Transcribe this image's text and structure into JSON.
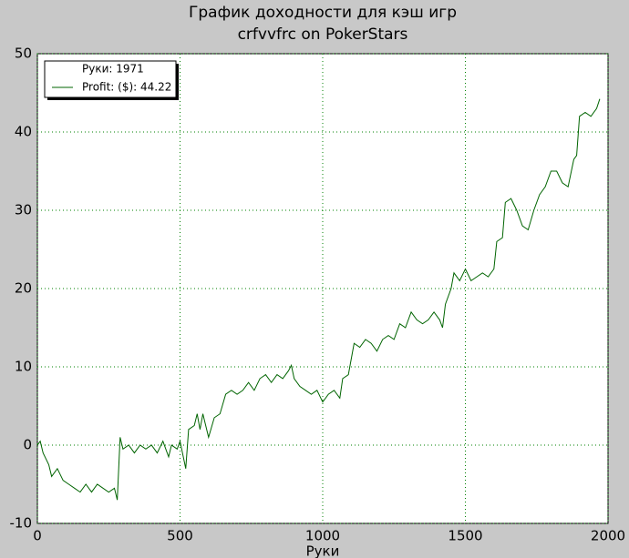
{
  "chart_data": {
    "type": "line",
    "title": "График доходности для кэш игр",
    "subtitle": "crfvvfrc on PokerStars",
    "x_label": "Руки",
    "legend_header": "Руки: 1971",
    "legend_position": "upper left",
    "grid": true,
    "xlim": [
      0,
      2000
    ],
    "xticks": [
      0,
      500,
      1000,
      1500,
      2000
    ],
    "ylim": [
      -10,
      50
    ],
    "yticks": [
      -10,
      0,
      10,
      20,
      30,
      40,
      50
    ],
    "x": [
      0,
      10,
      20,
      40,
      50,
      70,
      90,
      110,
      130,
      150,
      170,
      190,
      210,
      230,
      250,
      270,
      280,
      290,
      300,
      320,
      340,
      360,
      380,
      400,
      420,
      440,
      460,
      470,
      490,
      500,
      520,
      530,
      550,
      560,
      570,
      580,
      600,
      620,
      640,
      660,
      680,
      700,
      720,
      740,
      760,
      780,
      800,
      820,
      840,
      860,
      880,
      890,
      900,
      920,
      940,
      960,
      980,
      1000,
      1020,
      1040,
      1060,
      1070,
      1090,
      1100,
      1110,
      1130,
      1150,
      1170,
      1190,
      1210,
      1230,
      1250,
      1270,
      1290,
      1310,
      1330,
      1350,
      1370,
      1390,
      1410,
      1420,
      1430,
      1450,
      1460,
      1480,
      1500,
      1520,
      1540,
      1560,
      1580,
      1600,
      1610,
      1630,
      1640,
      1660,
      1680,
      1700,
      1720,
      1740,
      1760,
      1780,
      1800,
      1820,
      1840,
      1860,
      1880,
      1890,
      1900,
      1920,
      1940,
      1960,
      1971
    ],
    "series": [
      {
        "name": "Profit: ($): 44.22",
        "color": "#006400",
        "values": [
          0,
          0.5,
          -1,
          -2.5,
          -4,
          -3,
          -4.5,
          -5,
          -5.5,
          -6,
          -5,
          -6,
          -5,
          -5.5,
          -6,
          -5.5,
          -7,
          1,
          -0.5,
          0,
          -1,
          0,
          -0.5,
          0,
          -1,
          0.5,
          -1.5,
          0,
          -0.5,
          0.5,
          -3,
          2,
          2.5,
          4,
          2,
          4,
          1,
          3.5,
          4,
          6.5,
          7,
          6.5,
          7,
          8,
          7,
          8.5,
          9,
          8,
          9,
          8.5,
          9.5,
          10.2,
          8.5,
          7.5,
          7,
          6.5,
          7,
          5.5,
          6.5,
          7,
          6,
          8.5,
          9,
          11,
          13,
          12.5,
          13.5,
          13,
          12,
          13.5,
          14,
          13.5,
          15.5,
          15,
          17,
          16,
          15.5,
          16,
          17,
          16,
          15,
          18,
          20,
          22,
          21,
          22.5,
          21,
          21.5,
          22,
          21.5,
          22.5,
          26,
          26.5,
          31,
          31.5,
          30,
          28,
          27.5,
          30,
          32,
          33,
          35,
          35,
          33.5,
          33,
          36.5,
          37,
          42,
          42.5,
          42,
          43,
          44.22
        ]
      }
    ]
  }
}
